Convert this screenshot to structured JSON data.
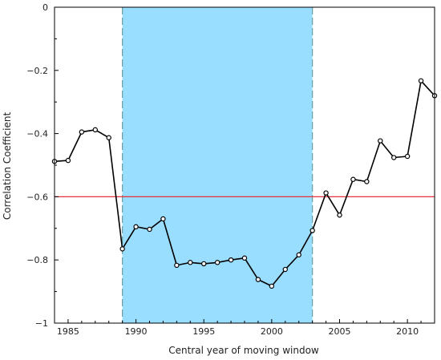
{
  "chart_data": {
    "type": "line",
    "title": "",
    "xlabel": "Central year of moving window",
    "ylabel": "Correlation Coefficient",
    "xlim": [
      1984,
      2012
    ],
    "ylim": [
      -1,
      0
    ],
    "grid": false,
    "legend": "none",
    "x_ticks": [
      1985,
      1990,
      1995,
      2000,
      2005,
      2010
    ],
    "x_tick_labels": [
      "1985",
      "1990",
      "1995",
      "2000",
      "2005",
      "2010"
    ],
    "y_ticks": [
      0,
      -0.2,
      -0.4,
      -0.6,
      -0.8,
      -1
    ],
    "y_tick_labels": [
      "0",
      "−0.2",
      "−0.4",
      "−0.6",
      "−0.8",
      "−1"
    ],
    "shaded_region": {
      "x_start": 1989,
      "x_end": 2003,
      "color": "#99ddff",
      "edge_color": "#6a9fa0"
    },
    "reference_line": {
      "y": -0.6,
      "color": "#e8313a"
    },
    "series": [
      {
        "color": "#000000",
        "x": [
          1984,
          1985,
          1986,
          1987,
          1988,
          1989,
          1990,
          1991,
          1992,
          1993,
          1994,
          1995,
          1996,
          1997,
          1998,
          1999,
          2000,
          2001,
          2002,
          2003,
          2004,
          2005,
          2006,
          2007,
          2008,
          2009,
          2010,
          2011,
          2012
        ],
        "y": [
          -0.488,
          -0.485,
          -0.395,
          -0.388,
          -0.413,
          -0.765,
          -0.695,
          -0.703,
          -0.67,
          -0.817,
          -0.808,
          -0.812,
          -0.808,
          -0.8,
          -0.794,
          -0.862,
          -0.883,
          -0.83,
          -0.784,
          -0.707,
          -0.588,
          -0.658,
          -0.545,
          -0.552,
          -0.423,
          -0.476,
          -0.472,
          -0.233,
          -0.28
        ]
      }
    ]
  }
}
